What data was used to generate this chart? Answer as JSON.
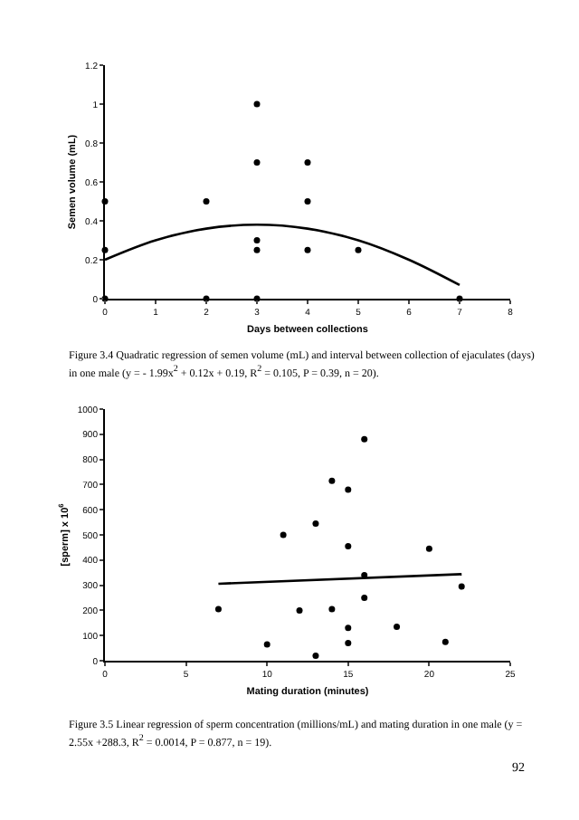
{
  "chart_data": [
    {
      "type": "scatter",
      "xlabel": "Days between collections",
      "ylabel": "Semen volume (mL)",
      "marker": "circle",
      "grid": false,
      "xlim": [
        0,
        8
      ],
      "xticks": [
        0,
        1,
        2,
        3,
        4,
        5,
        6,
        7,
        8
      ],
      "ylim": [
        0,
        1.2
      ],
      "yticks": [
        0,
        0.2,
        0.4,
        0.6,
        0.8,
        1,
        1.2
      ],
      "series": [
        {
          "color": "#000000",
          "x": [
            0,
            0,
            0,
            2,
            2,
            3,
            3,
            3,
            3,
            3,
            4,
            4,
            4,
            5,
            7
          ],
          "values": [
            0.5,
            0.25,
            0,
            0.5,
            0,
            1,
            0.7,
            0.3,
            0.25,
            0,
            0.7,
            0.5,
            0.25,
            0.25,
            0
          ]
        },
        {
          "type": "line",
          "marker": "none",
          "color": "#000000",
          "x": [
            0,
            1,
            2,
            3,
            4,
            5,
            6,
            7
          ],
          "values": [
            0.2,
            0.3,
            0.36,
            0.38,
            0.36,
            0.3,
            0.2,
            0.07
          ]
        }
      ],
      "annotations": [
        "Figure 3.4 Quadratic regression of semen volume (mL) and interval between collection of ejaculates (days) in one male (y = - 1.99x$^{2}$ + 0.12x + 0.19, R$^{2}$ = 0.105, P = 0.39, n = 20)."
      ]
    },
    {
      "type": "scatter",
      "xlabel": "Mating duration (minutes)",
      "ylabel": "[sperm] x 10$^{6}$",
      "marker": "circle",
      "grid": false,
      "xlim": [
        0,
        25
      ],
      "xticks": [
        0,
        5,
        10,
        15,
        20,
        25
      ],
      "ylim": [
        0,
        1000
      ],
      "yticks": [
        0,
        100,
        200,
        300,
        400,
        500,
        600,
        700,
        800,
        900,
        1000
      ],
      "series": [
        {
          "color": "#000000",
          "x": [
            7,
            10,
            11,
            12,
            13,
            13,
            14,
            14,
            15,
            15,
            15,
            15,
            16,
            16,
            16,
            18,
            20,
            21,
            22
          ],
          "values": [
            205,
            65,
            500,
            200,
            545,
            20,
            715,
            205,
            680,
            455,
            130,
            70,
            880,
            340,
            250,
            135,
            445,
            75,
            295
          ]
        },
        {
          "type": "line",
          "marker": "none",
          "color": "#000000",
          "x": [
            7,
            22
          ],
          "values": [
            306,
            344
          ]
        }
      ],
      "annotations": [
        "Figure 3.5 Linear regression of sperm concentration (millions/mL) and mating duration in one male (y = 2.55x +288.3, R$^{2}$ = 0.0014, P = 0.877, n = 19).",
        "92"
      ]
    }
  ]
}
